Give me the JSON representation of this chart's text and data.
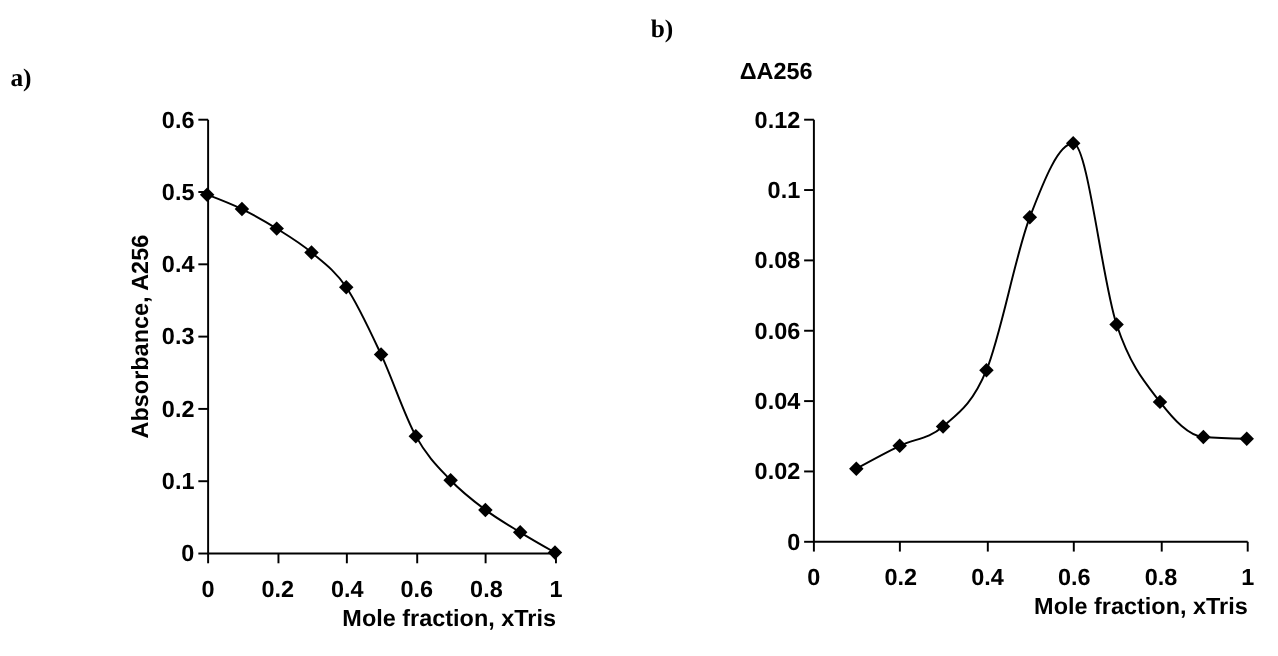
{
  "chart_data": [
    {
      "type": "line",
      "title": "a)",
      "xlabel": "Mole fraction, xTris",
      "ylabel": "Absorbance, A256",
      "color": "#000000",
      "marker": "diamond",
      "line_style": "solid",
      "grid": false,
      "x": [
        0,
        0.1,
        0.2,
        0.3,
        0.4,
        0.5,
        0.6,
        0.7,
        0.8,
        0.9,
        1
      ],
      "values": [
        0.495,
        0.475,
        0.448,
        0.415,
        0.367,
        0.274,
        0.161,
        0.1,
        0.059,
        0.028,
        0
      ],
      "xlim": [
        0,
        1
      ],
      "ylim": [
        0,
        0.6
      ],
      "xticks": [
        0,
        0.2,
        0.4,
        0.6,
        0.8,
        1
      ],
      "yticks": [
        0,
        0.1,
        0.2,
        0.3,
        0.4,
        0.5,
        0.6
      ]
    },
    {
      "type": "line",
      "title": "b)",
      "xlabel": "Mole fraction, xTris",
      "ylabel": "ΔA256",
      "color": "#000000",
      "marker": "diamond",
      "line_style": "solid",
      "grid": false,
      "x": [
        0.1,
        0.2,
        0.3,
        0.4,
        0.5,
        0.6,
        0.7,
        0.8,
        0.9,
        1
      ],
      "values": [
        0.0205,
        0.027,
        0.0325,
        0.0485,
        0.092,
        0.113,
        0.0615,
        0.0395,
        0.0295,
        0.029
      ],
      "xlim": [
        0,
        1
      ],
      "ylim": [
        0,
        0.12
      ],
      "xticks": [
        0,
        0.2,
        0.4,
        0.6,
        0.8,
        1
      ],
      "yticks": [
        0,
        0.02,
        0.04,
        0.06,
        0.08,
        0.1,
        0.12
      ]
    }
  ]
}
